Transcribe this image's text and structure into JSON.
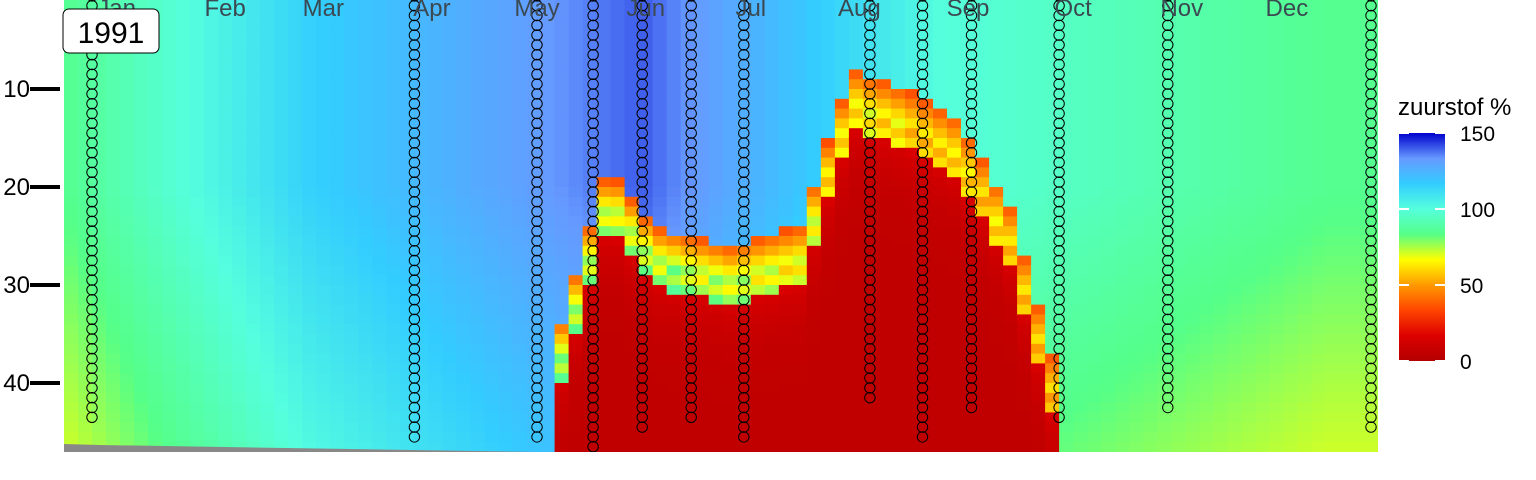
{
  "chart_data": {
    "type": "heatmap",
    "year_label": "1991",
    "x_axis_months": [
      "Jan",
      "Feb",
      "Mar",
      "Apr",
      "May",
      "Jun",
      "Jul",
      "Aug",
      "Sep",
      "Oct",
      "Nov",
      "Dec"
    ],
    "y_ticks": [
      10,
      20,
      30,
      40
    ],
    "y_axis_reversed": true,
    "y_range": [
      1,
      47
    ],
    "legend": {
      "title": "zuurstof %",
      "ticks": [
        150,
        100,
        50,
        0
      ],
      "range": [
        0,
        150
      ],
      "palette": [
        "#b30000",
        "#dd0000",
        "#ff4400",
        "#ff9900",
        "#ffff00",
        "#55ff88",
        "#55ffdd",
        "#33ccff",
        "#6699ff",
        "#0000cc"
      ]
    },
    "value_field_approx": {
      "description_units": "zuurstof % by day-of-year and depth",
      "surface_values": [
        {
          "day": 1,
          "value": 85
        },
        {
          "day": 70,
          "value": 115
        },
        {
          "day": 165,
          "value": 140
        },
        {
          "day": 250,
          "value": 100
        },
        {
          "day": 360,
          "value": 85
        }
      ],
      "anoxic_zone": [
        {
          "day": 140,
          "top_depth": 42
        },
        {
          "day": 155,
          "top_depth": 24
        },
        {
          "day": 168,
          "top_depth": 30
        },
        {
          "day": 190,
          "top_depth": 32
        },
        {
          "day": 210,
          "top_depth": 30
        },
        {
          "day": 225,
          "top_depth": 14
        },
        {
          "day": 240,
          "top_depth": 16
        },
        {
          "day": 255,
          "top_depth": 19
        },
        {
          "day": 270,
          "top_depth": 28
        },
        {
          "day": 285,
          "top_depth": 47
        }
      ]
    },
    "sample_casts": [
      {
        "day": 8,
        "depth_min": 1,
        "depth_max": 44
      },
      {
        "day": 100,
        "depth_min": 1,
        "depth_max": 46
      },
      {
        "day": 135,
        "depth_min": 1,
        "depth_max": 46
      },
      {
        "day": 151,
        "depth_min": 1,
        "depth_max": 47
      },
      {
        "day": 165,
        "depth_min": 1,
        "depth_max": 45
      },
      {
        "day": 179,
        "depth_min": 1,
        "depth_max": 44
      },
      {
        "day": 194,
        "depth_min": 1,
        "depth_max": 46
      },
      {
        "day": 230,
        "depth_min": 1,
        "depth_max": 42
      },
      {
        "day": 245,
        "depth_min": 1,
        "depth_max": 46
      },
      {
        "day": 259,
        "depth_min": 1,
        "depth_max": 43
      },
      {
        "day": 284,
        "depth_min": 1,
        "depth_max": 44
      },
      {
        "day": 315,
        "depth_min": 1,
        "depth_max": 43
      },
      {
        "day": 373,
        "depth_min": 1,
        "depth_max": 45
      }
    ]
  }
}
